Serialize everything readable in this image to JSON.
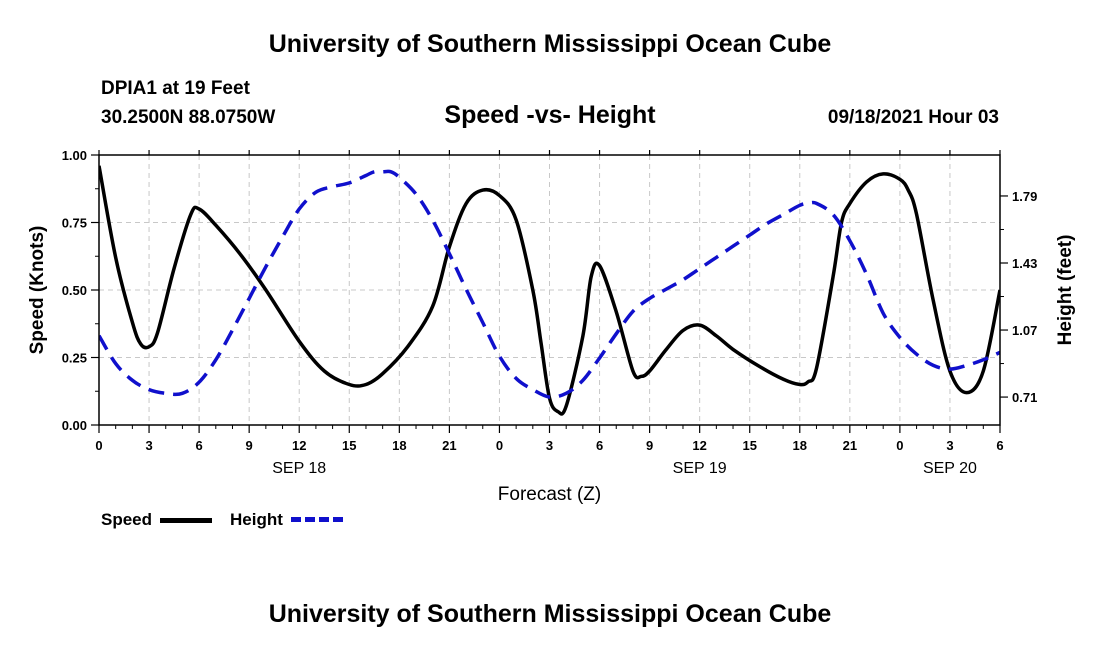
{
  "header": {
    "title": "University of Southern Mississippi Ocean Cube",
    "station": "DPIA1 at 19 Feet",
    "coords": "30.2500N  88.0750W",
    "chart_title": "Speed -vs- Height",
    "datetime": "09/18/2021 Hour 03"
  },
  "footer": {
    "title": "University of Southern Mississippi Ocean Cube"
  },
  "legend": {
    "speed_label": "Speed",
    "height_label": "Height"
  },
  "colors": {
    "speed": "#000000",
    "height": "#1010cc",
    "grid": "#c8c8c8"
  },
  "chart_data": {
    "type": "line",
    "title": "Speed -vs- Height",
    "xlabel": "Forecast (Z)",
    "ylabel": "Speed (Knots)",
    "y2label": "Height (feet)",
    "xlim": [
      0,
      54
    ],
    "ylim": [
      0,
      1
    ],
    "y2lim": [
      0.56,
      2.01
    ],
    "x_ticks": [
      0,
      3,
      6,
      9,
      12,
      15,
      18,
      21,
      24,
      27,
      30,
      33,
      36,
      39,
      42,
      45,
      48,
      51,
      54
    ],
    "x_tick_labels": [
      "0",
      "3",
      "6",
      "9",
      "12",
      "15",
      "18",
      "21",
      "0",
      "3",
      "6",
      "9",
      "12",
      "15",
      "18",
      "21",
      "0",
      "3",
      "6"
    ],
    "date_labels": [
      {
        "x": 12,
        "label": "SEP 18"
      },
      {
        "x": 36,
        "label": "SEP 19"
      },
      {
        "x": 51,
        "label": "SEP 20"
      }
    ],
    "y_ticks": [
      0,
      0.25,
      0.5,
      0.75,
      1.0
    ],
    "y_tick_labels": [
      "0.00",
      "0.25",
      "0.50",
      "0.75",
      "1.00"
    ],
    "y2_ticks": [
      0.71,
      1.07,
      1.43,
      1.79
    ],
    "y2_tick_labels": [
      "0.71",
      "1.07",
      "1.43",
      "1.79"
    ],
    "grid": true,
    "series": [
      {
        "name": "Speed",
        "axis": "left",
        "x": [
          0,
          1,
          2,
          2.5,
          3,
          3.5,
          4.5,
          5.5,
          6,
          7,
          8.5,
          10,
          12,
          13.5,
          15,
          16,
          17,
          18.5,
          20,
          21,
          22,
          23,
          24,
          25,
          26,
          26.5,
          27,
          27.5,
          28,
          29,
          29.5,
          30,
          31,
          32,
          32.5,
          33,
          34,
          35,
          36,
          37,
          38,
          39.5,
          41,
          42,
          42.5,
          43,
          44,
          44.5,
          45,
          46,
          47,
          48,
          48.5,
          49,
          50,
          51,
          52,
          53,
          54
        ],
        "values": [
          0.96,
          0.62,
          0.38,
          0.3,
          0.29,
          0.34,
          0.58,
          0.78,
          0.8,
          0.74,
          0.63,
          0.5,
          0.31,
          0.2,
          0.15,
          0.15,
          0.19,
          0.29,
          0.44,
          0.66,
          0.82,
          0.87,
          0.85,
          0.76,
          0.5,
          0.3,
          0.1,
          0.05,
          0.07,
          0.33,
          0.55,
          0.59,
          0.42,
          0.2,
          0.18,
          0.2,
          0.28,
          0.35,
          0.37,
          0.33,
          0.28,
          0.22,
          0.17,
          0.15,
          0.16,
          0.21,
          0.55,
          0.75,
          0.82,
          0.9,
          0.93,
          0.91,
          0.87,
          0.78,
          0.46,
          0.2,
          0.12,
          0.2,
          0.5
        ]
      },
      {
        "name": "Height",
        "axis": "right",
        "x": [
          0,
          1,
          2,
          3,
          4,
          5,
          6,
          7,
          8,
          9,
          10,
          11,
          12,
          13,
          14,
          15,
          16,
          16.5,
          17,
          17.5,
          18,
          19,
          20,
          21,
          22,
          23,
          24,
          25,
          26,
          27,
          28,
          29,
          30,
          31,
          32,
          33,
          34,
          35,
          36,
          37,
          38,
          39,
          40,
          41,
          42,
          42.5,
          43,
          44,
          45,
          46,
          47,
          48,
          49,
          50,
          51,
          52,
          53,
          54
        ],
        "values": [
          1.04,
          0.89,
          0.8,
          0.75,
          0.73,
          0.73,
          0.79,
          0.91,
          1.07,
          1.24,
          1.41,
          1.57,
          1.72,
          1.81,
          1.84,
          1.86,
          1.9,
          1.92,
          1.92,
          1.92,
          1.89,
          1.8,
          1.66,
          1.48,
          1.29,
          1.11,
          0.93,
          0.81,
          0.75,
          0.71,
          0.73,
          0.8,
          0.92,
          1.05,
          1.17,
          1.24,
          1.29,
          1.34,
          1.4,
          1.46,
          1.52,
          1.58,
          1.64,
          1.69,
          1.74,
          1.75,
          1.75,
          1.69,
          1.55,
          1.37,
          1.16,
          1.03,
          0.94,
          0.88,
          0.86,
          0.88,
          0.91,
          0.95
        ]
      }
    ]
  }
}
